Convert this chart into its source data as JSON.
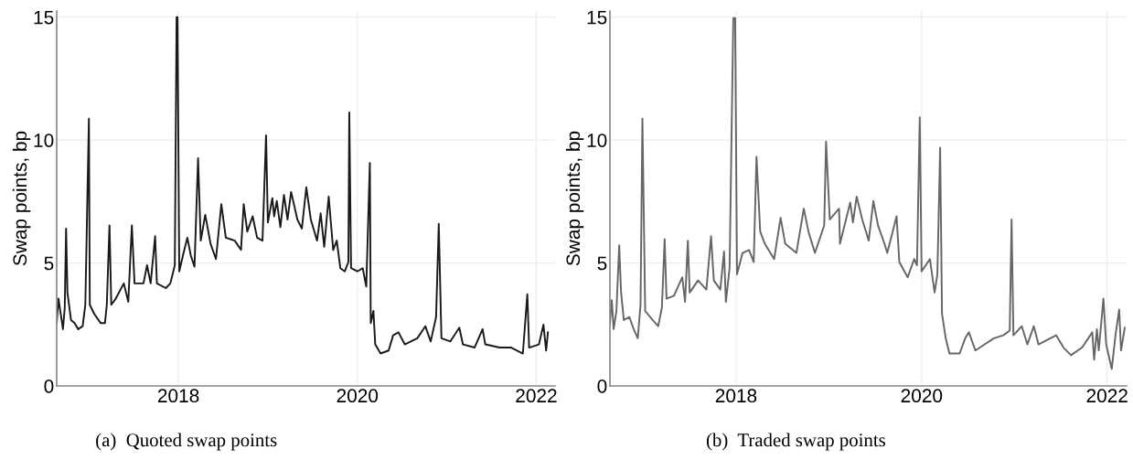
{
  "chart_data": [
    {
      "type": "line",
      "ylabel": "Swap points, bp",
      "annotations": [
        "(a)  Quoted swap points"
      ],
      "xlim": [
        2016.64,
        2022.21
      ],
      "xticks": [
        2018,
        2020,
        2022
      ],
      "ylim": [
        0,
        15.25
      ],
      "yticks": [
        0,
        5,
        10,
        15
      ],
      "grid": true,
      "series": [
        {
          "color": "#1a1a1a",
          "x": [
            2016.64,
            2016.66,
            2016.71,
            2016.73,
            2016.745,
            2016.76,
            2016.8,
            2016.84,
            2016.88,
            2016.93,
            2016.96,
            2017.0,
            2017.01,
            2017.06,
            2017.13,
            2017.18,
            2017.2,
            2017.23,
            2017.25,
            2017.3,
            2017.39,
            2017.44,
            2017.48,
            2017.51,
            2017.61,
            2017.65,
            2017.69,
            2017.74,
            2017.76,
            2017.86,
            2017.91,
            2017.96,
            2017.98,
            2017.99,
            2018.01,
            2018.05,
            2018.1,
            2018.14,
            2018.18,
            2018.22,
            2018.25,
            2018.3,
            2018.36,
            2018.42,
            2018.48,
            2018.53,
            2018.63,
            2018.7,
            2018.73,
            2018.77,
            2018.83,
            2018.88,
            2018.94,
            2018.98,
            2019.0,
            2019.05,
            2019.07,
            2019.1,
            2019.14,
            2019.18,
            2019.22,
            2019.26,
            2019.33,
            2019.38,
            2019.43,
            2019.48,
            2019.55,
            2019.59,
            2019.63,
            2019.68,
            2019.73,
            2019.77,
            2019.81,
            2019.86,
            2019.9,
            2019.91,
            2019.93,
            2020.0,
            2020.06,
            2020.1,
            2020.14,
            2020.15,
            2020.18,
            2020.2,
            2020.26,
            2020.35,
            2020.4,
            2020.46,
            2020.53,
            2020.67,
            2020.76,
            2020.82,
            2020.88,
            2020.91,
            2020.94,
            2021.04,
            2021.14,
            2021.18,
            2021.31,
            2021.4,
            2021.43,
            2021.59,
            2021.72,
            2021.85,
            2021.9,
            2021.92,
            2022.03,
            2022.08,
            2022.11,
            2022.13
          ],
          "values": [
            2.56,
            3.55,
            2.31,
            3.18,
            6.4,
            3.8,
            2.68,
            2.56,
            2.31,
            2.43,
            3.3,
            10.87,
            3.3,
            2.93,
            2.56,
            2.56,
            3.3,
            6.53,
            3.3,
            3.55,
            4.17,
            3.42,
            6.53,
            4.17,
            4.17,
            4.91,
            4.17,
            6.09,
            4.17,
            3.98,
            4.17,
            4.91,
            15.0,
            15.0,
            4.66,
            5.29,
            6.03,
            5.29,
            4.85,
            9.26,
            5.91,
            6.96,
            5.78,
            5.16,
            7.39,
            6.03,
            5.91,
            5.53,
            7.39,
            6.28,
            6.9,
            6.03,
            5.91,
            10.19,
            6.65,
            7.64,
            6.9,
            7.52,
            6.46,
            7.77,
            6.77,
            7.89,
            6.77,
            6.4,
            8.08,
            6.77,
            5.91,
            7.02,
            5.66,
            7.7,
            5.53,
            5.91,
            4.79,
            4.66,
            5.04,
            11.12,
            4.79,
            4.66,
            4.79,
            4.04,
            9.07,
            2.56,
            3.05,
            1.69,
            1.32,
            1.44,
            2.06,
            2.18,
            1.69,
            1.94,
            2.43,
            1.81,
            2.8,
            6.59,
            1.94,
            1.81,
            2.37,
            1.69,
            1.56,
            2.31,
            1.69,
            1.56,
            1.56,
            1.32,
            3.73,
            1.56,
            1.69,
            2.49,
            1.44,
            2.18
          ]
        }
      ]
    },
    {
      "type": "line",
      "ylabel": "Swap points, bp",
      "annotations": [
        "(b)  Traded swap points"
      ],
      "xlim": [
        2016.64,
        2022.21
      ],
      "xticks": [
        2018,
        2020,
        2022
      ],
      "ylim": [
        0,
        15.25
      ],
      "yticks": [
        0,
        5,
        10,
        15
      ],
      "grid": true,
      "series": [
        {
          "color": "#666666",
          "x": [
            2016.64,
            2016.66,
            2016.68,
            2016.71,
            2016.74,
            2016.76,
            2016.79,
            2016.85,
            2016.89,
            2016.94,
            2016.97,
            2016.99,
            2017.02,
            2017.1,
            2017.16,
            2017.2,
            2017.23,
            2017.25,
            2017.33,
            2017.42,
            2017.45,
            2017.48,
            2017.5,
            2017.59,
            2017.68,
            2017.73,
            2017.76,
            2017.83,
            2017.87,
            2017.89,
            2017.93,
            2017.97,
            2017.99,
            2018.01,
            2018.07,
            2018.14,
            2018.19,
            2018.22,
            2018.26,
            2018.31,
            2018.41,
            2018.48,
            2018.53,
            2018.65,
            2018.73,
            2018.78,
            2018.85,
            2018.95,
            2018.97,
            2019.01,
            2019.11,
            2019.12,
            2019.23,
            2019.26,
            2019.3,
            2019.36,
            2019.43,
            2019.48,
            2019.53,
            2019.6,
            2019.63,
            2019.73,
            2019.76,
            2019.85,
            2019.92,
            2019.95,
            2019.98,
            2020.0,
            2020.09,
            2020.14,
            2020.17,
            2020.2,
            2020.22,
            2020.26,
            2020.3,
            2020.41,
            2020.47,
            2020.51,
            2020.58,
            2020.68,
            2020.78,
            2020.88,
            2020.95,
            2020.97,
            2020.99,
            2021.08,
            2021.14,
            2021.21,
            2021.26,
            2021.45,
            2021.53,
            2021.61,
            2021.73,
            2021.84,
            2021.86,
            2021.89,
            2021.91,
            2021.96,
            2021.99,
            2022.05,
            2022.09,
            2022.13,
            2022.15,
            2022.19
          ],
          "values": [
            2.56,
            3.49,
            2.31,
            3.05,
            5.72,
            3.8,
            2.68,
            2.8,
            2.37,
            1.94,
            3.3,
            10.87,
            3.05,
            2.68,
            2.43,
            3.18,
            5.97,
            3.55,
            3.67,
            4.42,
            3.42,
            5.91,
            3.8,
            4.29,
            3.92,
            6.09,
            4.29,
            3.92,
            5.47,
            3.42,
            4.79,
            14.96,
            14.96,
            4.54,
            5.41,
            5.53,
            5.04,
            9.32,
            6.28,
            5.78,
            5.16,
            6.84,
            5.78,
            5.41,
            7.21,
            6.28,
            5.41,
            6.53,
            9.94,
            6.77,
            7.21,
            5.78,
            7.46,
            6.65,
            7.7,
            6.77,
            5.91,
            7.52,
            6.53,
            5.78,
            5.41,
            6.9,
            5.04,
            4.42,
            5.16,
            4.91,
            10.93,
            4.66,
            5.16,
            3.8,
            4.54,
            9.69,
            2.93,
            1.94,
            1.32,
            1.32,
            1.94,
            2.18,
            1.44,
            1.69,
            1.94,
            2.06,
            2.25,
            6.77,
            2.06,
            2.43,
            1.69,
            2.43,
            1.69,
            2.06,
            1.56,
            1.25,
            1.56,
            2.18,
            1.07,
            2.31,
            1.44,
            3.55,
            1.69,
            0.69,
            2.06,
            3.11,
            1.44,
            2.37
          ]
        }
      ]
    }
  ]
}
